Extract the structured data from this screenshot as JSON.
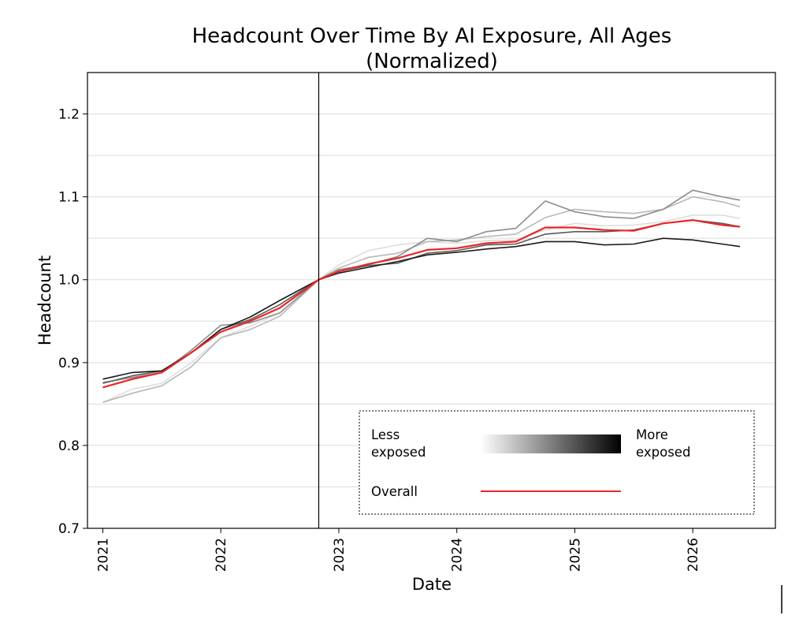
{
  "chart_data": {
    "type": "line",
    "title": [
      "Headcount Over Time By AI Exposure, All Ages",
      "(Normalized)"
    ],
    "xlabel": "Date",
    "ylabel": "Headcount",
    "xlim": [
      2020.87,
      2026.7
    ],
    "ylim": [
      0.7,
      1.25
    ],
    "x_ticks": [
      2021,
      2022,
      2023,
      2024,
      2025,
      2026
    ],
    "x_tick_labels": [
      "2021",
      "2022",
      "2023",
      "2024",
      "2025",
      "2026"
    ],
    "y_ticks": [
      0.7,
      0.8,
      0.9,
      1.0,
      1.1,
      1.2
    ],
    "y_tick_labels": [
      "0.7",
      "0.8",
      "0.9",
      "1.0",
      "1.1",
      "1.2"
    ],
    "grid": "horizontal",
    "reference_line_x": 2022.83,
    "legend": {
      "placement": "lower-right",
      "less_label": [
        "Less",
        "exposed"
      ],
      "more_label": [
        "More",
        "exposed"
      ],
      "overall_label": "Overall",
      "gradient_from": "#ffffff",
      "gradient_to": "#000000"
    },
    "overall_color": "#e8262a",
    "series": [
      {
        "shade": "#dddddd",
        "x": [
          2021.0,
          2021.25,
          2021.5,
          2021.75,
          2022.0,
          2022.25,
          2022.5,
          2022.83,
          2023.0,
          2023.25,
          2023.5,
          2023.75,
          2024.0,
          2024.25,
          2024.5,
          2024.75,
          2025.0,
          2025.25,
          2025.5,
          2025.75,
          2026.0,
          2026.25,
          2026.4
        ],
        "y": [
          0.852,
          0.868,
          0.875,
          0.9,
          0.93,
          0.944,
          0.96,
          1.0,
          1.018,
          1.035,
          1.042,
          1.046,
          1.044,
          1.047,
          1.048,
          1.06,
          1.068,
          1.065,
          1.066,
          1.07,
          1.078,
          1.078,
          1.074
        ]
      },
      {
        "shade": "#b8b8b8",
        "x": [
          2021.0,
          2021.25,
          2021.5,
          2021.75,
          2022.0,
          2022.25,
          2022.5,
          2022.83,
          2023.0,
          2023.25,
          2023.5,
          2023.75,
          2024.0,
          2024.25,
          2024.5,
          2024.75,
          2025.0,
          2025.25,
          2025.5,
          2025.75,
          2026.0,
          2026.25,
          2026.4
        ],
        "y": [
          0.852,
          0.863,
          0.872,
          0.895,
          0.93,
          0.94,
          0.956,
          1.0,
          1.014,
          1.027,
          1.032,
          1.046,
          1.048,
          1.052,
          1.055,
          1.075,
          1.085,
          1.082,
          1.08,
          1.085,
          1.1,
          1.094,
          1.088
        ]
      },
      {
        "shade": "#8c8c8c",
        "x": [
          2021.0,
          2021.25,
          2021.5,
          2021.75,
          2022.0,
          2022.25,
          2022.5,
          2022.83,
          2023.0,
          2023.25,
          2023.5,
          2023.75,
          2024.0,
          2024.25,
          2024.5,
          2024.75,
          2025.0,
          2025.25,
          2025.5,
          2025.75,
          2026.0,
          2026.25,
          2026.4
        ],
        "y": [
          0.876,
          0.882,
          0.888,
          0.915,
          0.945,
          0.948,
          0.96,
          1.0,
          1.012,
          1.018,
          1.028,
          1.05,
          1.046,
          1.058,
          1.062,
          1.095,
          1.082,
          1.076,
          1.074,
          1.085,
          1.108,
          1.1,
          1.096
        ]
      },
      {
        "shade": "#5a5a5a",
        "x": [
          2021.0,
          2021.25,
          2021.5,
          2021.75,
          2022.0,
          2022.25,
          2022.5,
          2022.83,
          2023.0,
          2023.25,
          2023.5,
          2023.75,
          2024.0,
          2024.25,
          2024.5,
          2024.75,
          2025.0,
          2025.25,
          2025.5,
          2025.75,
          2026.0,
          2026.25,
          2026.4
        ],
        "y": [
          0.875,
          0.884,
          0.89,
          0.912,
          0.94,
          0.952,
          0.97,
          1.0,
          1.01,
          1.017,
          1.02,
          1.032,
          1.035,
          1.042,
          1.043,
          1.055,
          1.058,
          1.058,
          1.06,
          1.068,
          1.072,
          1.068,
          1.064
        ]
      },
      {
        "shade": "#1a1a1a",
        "x": [
          2021.0,
          2021.25,
          2021.5,
          2021.75,
          2022.0,
          2022.25,
          2022.5,
          2022.83,
          2023.0,
          2023.25,
          2023.5,
          2023.75,
          2024.0,
          2024.25,
          2024.5,
          2024.75,
          2025.0,
          2025.25,
          2025.5,
          2025.75,
          2026.0,
          2026.25,
          2026.4
        ],
        "y": [
          0.88,
          0.888,
          0.89,
          0.912,
          0.94,
          0.955,
          0.975,
          1.0,
          1.008,
          1.015,
          1.022,
          1.03,
          1.033,
          1.037,
          1.04,
          1.046,
          1.046,
          1.042,
          1.043,
          1.05,
          1.048,
          1.043,
          1.04
        ]
      },
      {
        "shade": "#e8262a",
        "overall": true,
        "x": [
          2021.0,
          2021.25,
          2021.5,
          2021.75,
          2022.0,
          2022.25,
          2022.5,
          2022.83,
          2023.0,
          2023.25,
          2023.5,
          2023.75,
          2024.0,
          2024.25,
          2024.5,
          2024.75,
          2025.0,
          2025.25,
          2025.5,
          2025.75,
          2026.0,
          2026.25,
          2026.4
        ],
        "y": [
          0.87,
          0.88,
          0.888,
          0.912,
          0.937,
          0.95,
          0.966,
          1.0,
          1.01,
          1.019,
          1.026,
          1.036,
          1.038,
          1.044,
          1.046,
          1.063,
          1.063,
          1.06,
          1.059,
          1.068,
          1.072,
          1.066,
          1.064
        ]
      }
    ]
  }
}
